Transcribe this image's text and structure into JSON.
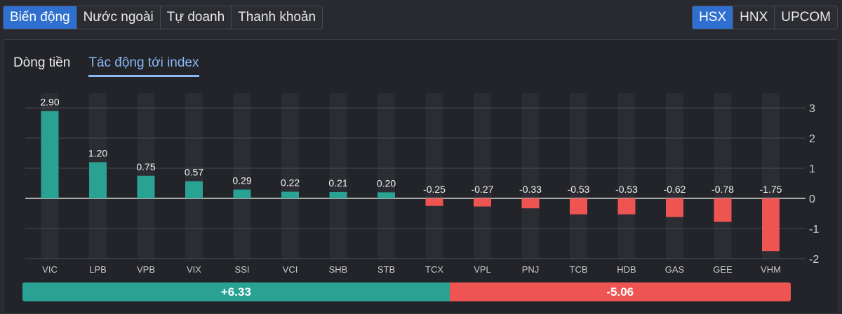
{
  "tabs_left": [
    {
      "label": "Biến động",
      "active": true
    },
    {
      "label": "Nước ngoài",
      "active": false
    },
    {
      "label": "Tự doanh",
      "active": false
    },
    {
      "label": "Thanh khoản",
      "active": false
    }
  ],
  "tabs_right": [
    {
      "label": "HSX",
      "active": true
    },
    {
      "label": "HNX",
      "active": false
    },
    {
      "label": "UPCOM",
      "active": false
    }
  ],
  "subtabs": [
    {
      "label": "Dòng tiền",
      "active": false
    },
    {
      "label": "Tác động tới index",
      "active": true
    }
  ],
  "colors": {
    "positive": "#2aa293",
    "negative": "#ee5552",
    "active_tab": "#2f6fd0"
  },
  "chart_data": {
    "type": "bar",
    "title": "",
    "xlabel": "",
    "ylabel": "",
    "categories": [
      "VIC",
      "LPB",
      "VPB",
      "VIX",
      "SSI",
      "VCI",
      "SHB",
      "STB",
      "TCX",
      "VPL",
      "PNJ",
      "TCB",
      "HDB",
      "GAS",
      "GEE",
      "VHM"
    ],
    "values": [
      2.9,
      1.2,
      0.75,
      0.57,
      0.29,
      0.22,
      0.21,
      0.2,
      -0.25,
      -0.27,
      -0.33,
      -0.53,
      -0.53,
      -0.62,
      -0.78,
      -1.75
    ],
    "data_labels": [
      "2.90",
      "1.20",
      "0.75",
      "0.57",
      "0.29",
      "0.22",
      "0.21",
      "0.20",
      "-0.25",
      "-0.27",
      "-0.33",
      "-0.53",
      "-0.53",
      "-0.62",
      "-0.78",
      "-1.75"
    ],
    "ylim": [
      -2,
      3
    ],
    "yticks": [
      3,
      2,
      1,
      0,
      -1,
      -2
    ],
    "ytick_labels": [
      "3",
      "2",
      "1",
      "0",
      "-1",
      "-2"
    ],
    "y_axis_position": "right",
    "grid": true,
    "legend": "none"
  },
  "summary": {
    "positive_label": "+6.33",
    "negative_label": "-5.06",
    "positive_value": 6.33,
    "negative_value": 5.06
  }
}
